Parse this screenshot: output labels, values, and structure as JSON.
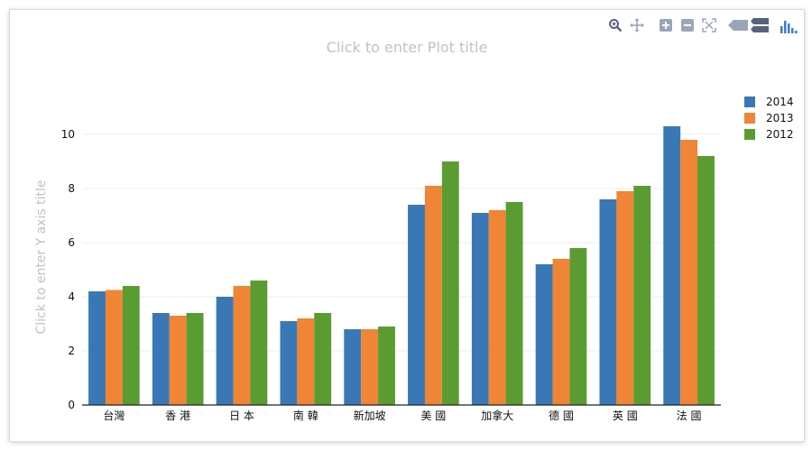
{
  "modebar": {
    "icons": [
      "zoom-icon",
      "pan-icon",
      "zoom-in-icon",
      "zoom-out-icon",
      "autoscale-icon",
      "hover-closest-icon",
      "hover-compare-icon",
      "plotly-logo-icon"
    ],
    "color": "#8c9bb0",
    "logo_color": "#3d7dd1"
  },
  "chart_data": {
    "type": "bar",
    "title": "Click to enter Plot title",
    "xlabel": "",
    "ylabel": "Click to enter Y axis title",
    "categories": [
      "台灣",
      "香 港",
      "日 本",
      "南 韓",
      "新加坡",
      "美 國",
      "加拿大",
      "德 國",
      "英 國",
      "法 國"
    ],
    "series": [
      {
        "name": "2014",
        "color": "#3a78b5",
        "values": [
          4.2,
          3.4,
          4.0,
          3.1,
          2.8,
          7.4,
          7.1,
          5.2,
          7.6,
          10.3
        ]
      },
      {
        "name": "2013",
        "color": "#ef8535",
        "values": [
          4.25,
          3.3,
          4.4,
          3.2,
          2.8,
          8.1,
          7.2,
          5.4,
          7.9,
          9.8
        ]
      },
      {
        "name": "2012",
        "color": "#5a9c31",
        "values": [
          4.4,
          3.4,
          4.6,
          3.4,
          2.9,
          9.0,
          7.5,
          5.8,
          8.1,
          9.2
        ]
      }
    ],
    "ylim": [
      0,
      11.6
    ],
    "yticks": [
      0,
      2,
      4,
      6,
      8,
      10
    ],
    "grid": true,
    "legend_position": "top-right"
  }
}
